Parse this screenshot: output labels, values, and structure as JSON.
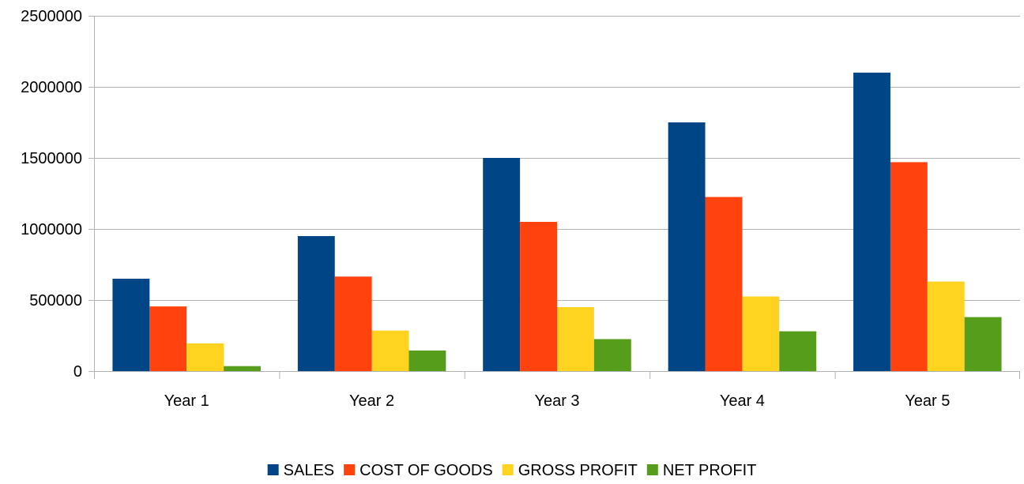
{
  "chart_data": {
    "type": "bar",
    "title": "",
    "xlabel": "",
    "ylabel": "",
    "categories": [
      "Year 1",
      "Year 2",
      "Year 3",
      "Year 4",
      "Year 5"
    ],
    "ylim": [
      0,
      2500000
    ],
    "yticks": [
      0,
      500000,
      1000000,
      1500000,
      2000000,
      2500000
    ],
    "ytick_labels": [
      "0",
      "500000",
      "1000000",
      "1500000",
      "2000000",
      "2500000"
    ],
    "grid": true,
    "legend_position": "bottom",
    "series": [
      {
        "name": "SALES",
        "color": "#004586",
        "values": [
          650000,
          950000,
          1500000,
          1750000,
          2100000
        ]
      },
      {
        "name": "COST OF GOODS",
        "color": "#ff420e",
        "values": [
          455000,
          665000,
          1050000,
          1225000,
          1470000
        ]
      },
      {
        "name": "GROSS PROFIT",
        "color": "#ffd320",
        "values": [
          195000,
          285000,
          450000,
          525000,
          630000
        ]
      },
      {
        "name": "NET PROFIT",
        "color": "#579d1c",
        "values": [
          35000,
          145000,
          225000,
          280000,
          380000
        ]
      }
    ]
  }
}
